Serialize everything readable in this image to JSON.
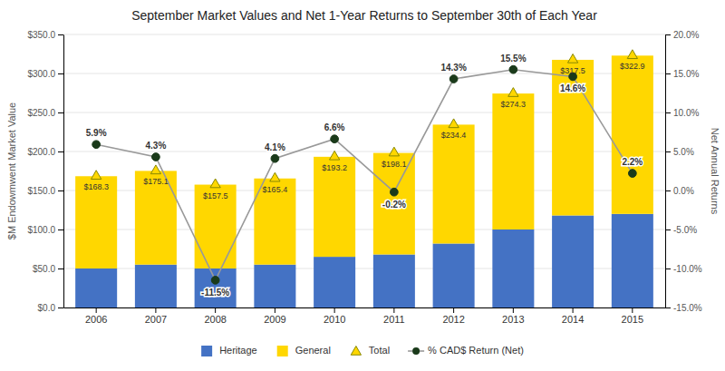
{
  "chart_data": {
    "type": "bar",
    "title": "September Market Values and Net 1-Year Returns to September 30th of Each Year",
    "categories": [
      "2006",
      "2007",
      "2008",
      "2009",
      "2010",
      "2011",
      "2012",
      "2013",
      "2014",
      "2015"
    ],
    "stacked": true,
    "grid": true,
    "legend": "bottom",
    "data_labels": true,
    "ylabel": "$M Endowmwent Market Value",
    "y2label": "Net Annual Returns",
    "ylim": [
      0,
      350
    ],
    "yticks": [
      {
        "value": 0,
        "label": "$0.0"
      },
      {
        "value": 50,
        "label": "$50.0"
      },
      {
        "value": 100,
        "label": "$100.0"
      },
      {
        "value": 150,
        "label": "$150.0"
      },
      {
        "value": 200,
        "label": "$200.0"
      },
      {
        "value": 250,
        "label": "$250.0"
      },
      {
        "value": 300,
        "label": "$300.0"
      },
      {
        "value": 350,
        "label": "$350.0"
      }
    ],
    "y2lim": [
      -15.0,
      20.0
    ],
    "y2ticks": [
      {
        "value": -15.0,
        "label": "-15.0%"
      },
      {
        "value": -10.0,
        "label": "-10.0%"
      },
      {
        "value": -5.0,
        "label": "-5.0%"
      },
      {
        "value": 0.0,
        "label": "0.0%"
      },
      {
        "value": 5.0,
        "label": "5.0%"
      },
      {
        "value": 10.0,
        "label": "10.0%"
      },
      {
        "value": 15.0,
        "label": "15.0%"
      },
      {
        "value": 20.0,
        "label": "20.0%"
      }
    ],
    "series": [
      {
        "name": "Heritage",
        "type": "bar",
        "color": "#4472C4",
        "values": [
          50,
          55,
          50,
          55,
          65,
          68,
          82,
          100,
          118,
          120
        ]
      },
      {
        "name": "General",
        "type": "bar",
        "color": "#FFD700",
        "values": [
          118.3,
          120.1,
          107.5,
          110.4,
          128.2,
          130.1,
          152.4,
          174.3,
          199.5,
          202.9
        ]
      },
      {
        "name": "Total",
        "type": "scatter",
        "marker": "triangle",
        "color": "#FFD700",
        "values": [
          168.3,
          175.1,
          157.5,
          165.4,
          193.2,
          198.1,
          234.4,
          274.3,
          317.5,
          322.9
        ],
        "value_labels": [
          "$168.3",
          "$175.1",
          "$157.5",
          "$165.4",
          "$193.2",
          "$198.1",
          "$234.4",
          "$274.3",
          "$317.5",
          "$322.9"
        ]
      },
      {
        "name": "% CAD$ Return (Net)",
        "type": "line",
        "marker": "circle",
        "color": "#1A3A1A",
        "axis": "y2",
        "values": [
          5.9,
          4.3,
          -11.5,
          4.1,
          6.6,
          -0.2,
          14.3,
          15.5,
          14.6,
          2.2
        ],
        "value_labels": [
          "5.9%",
          "4.3%",
          "-11.5%",
          "4.1%",
          "6.6%",
          "-0.2%",
          "14.3%",
          "15.5%",
          "14.6%",
          "2.2%"
        ]
      }
    ]
  }
}
